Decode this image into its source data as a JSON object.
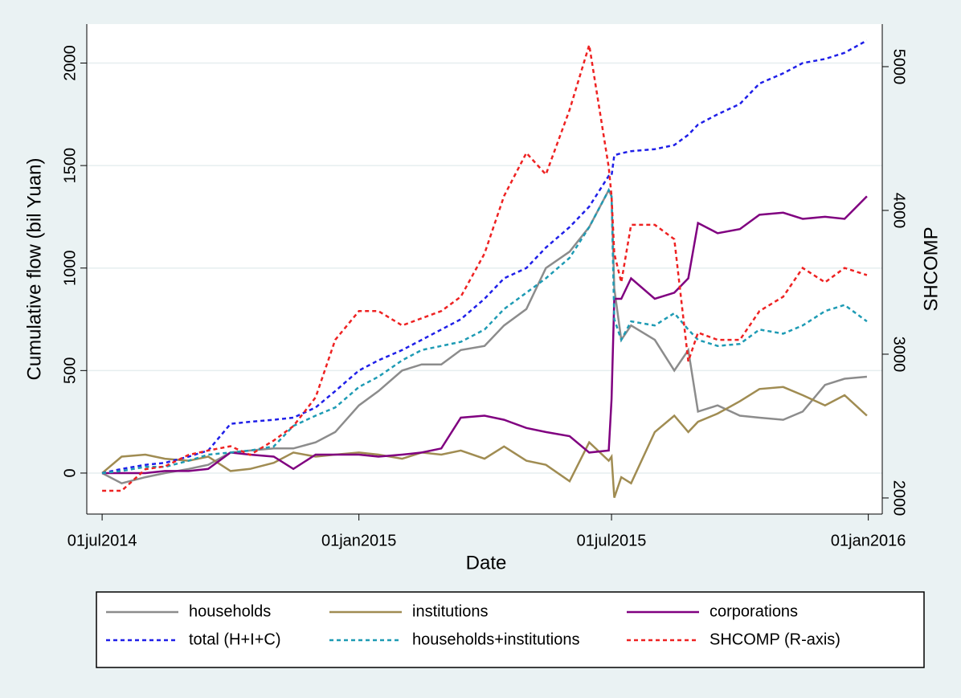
{
  "chart_data": {
    "type": "line",
    "x_label": "Date",
    "y_label": "Cumulative flow (bil Yuan)",
    "y2_label": "SHCOMP",
    "x": [
      "2014-07-01",
      "2014-07-15",
      "2014-08-01",
      "2014-08-15",
      "2014-09-01",
      "2014-09-15",
      "2014-10-01",
      "2014-10-15",
      "2014-11-01",
      "2014-11-15",
      "2014-12-01",
      "2014-12-15",
      "2015-01-01",
      "2015-01-15",
      "2015-02-01",
      "2015-02-15",
      "2015-03-01",
      "2015-03-15",
      "2015-04-01",
      "2015-04-15",
      "2015-05-01",
      "2015-05-15",
      "2015-06-01",
      "2015-06-15",
      "2015-06-29",
      "2015-07-01",
      "2015-07-03",
      "2015-07-08",
      "2015-07-15",
      "2015-08-01",
      "2015-08-15",
      "2015-08-25",
      "2015-09-01",
      "2015-09-15",
      "2015-10-01",
      "2015-10-15",
      "2015-11-01",
      "2015-11-15",
      "2015-12-01",
      "2015-12-15",
      "2015-12-31"
    ],
    "xlim": [
      "2014-06-20",
      "2016-01-11"
    ],
    "xticks": [
      {
        "value": "2014-07-01",
        "label": "01jul2014"
      },
      {
        "value": "2015-01-01",
        "label": "01jan2015"
      },
      {
        "value": "2015-07-01",
        "label": "01jul2015"
      },
      {
        "value": "2016-01-01",
        "label": "01jan2016"
      }
    ],
    "ylim": [
      -200,
      2190
    ],
    "yticks": [
      0,
      500,
      1000,
      1500,
      2000
    ],
    "y2lim": [
      1888,
      5296
    ],
    "y2ticks": [
      2000,
      3000,
      4000,
      5000
    ],
    "grid": true,
    "series": [
      {
        "name": "households",
        "color": "#8c8c8c",
        "dash": false,
        "values": [
          0,
          -50,
          -20,
          0,
          20,
          40,
          100,
          110,
          120,
          120,
          150,
          200,
          330,
          400,
          500,
          530,
          530,
          600,
          620,
          720,
          800,
          1000,
          1080,
          1200,
          1380,
          1350,
          900,
          650,
          720,
          650,
          500,
          600,
          300,
          330,
          280,
          270,
          260,
          300,
          430,
          460,
          470
        ]
      },
      {
        "name": "institutions",
        "color": "#a08c52",
        "dash": false,
        "values": [
          0,
          80,
          90,
          70,
          60,
          80,
          10,
          20,
          50,
          100,
          80,
          90,
          100,
          90,
          70,
          100,
          90,
          110,
          70,
          130,
          60,
          40,
          -40,
          150,
          60,
          80,
          -120,
          -20,
          -50,
          200,
          280,
          200,
          250,
          290,
          350,
          410,
          420,
          380,
          330,
          380,
          280
        ]
      },
      {
        "name": "corporations",
        "color": "#800080",
        "dash": false,
        "values": [
          0,
          0,
          0,
          10,
          10,
          20,
          100,
          90,
          80,
          20,
          90,
          90,
          90,
          80,
          90,
          100,
          120,
          270,
          280,
          260,
          220,
          200,
          180,
          100,
          110,
          360,
          850,
          850,
          950,
          850,
          880,
          950,
          1220,
          1170,
          1190,
          1260,
          1270,
          1240,
          1250,
          1240,
          1350
        ]
      },
      {
        "name": "total (H+I+C)",
        "color": "#1f1fe8",
        "dash": true,
        "values": [
          0,
          20,
          40,
          50,
          80,
          110,
          240,
          250,
          260,
          270,
          320,
          400,
          500,
          550,
          600,
          650,
          700,
          750,
          850,
          950,
          1000,
          1100,
          1200,
          1300,
          1450,
          1450,
          1550,
          1560,
          1570,
          1580,
          1600,
          1650,
          1700,
          1750,
          1800,
          1900,
          1950,
          2000,
          2020,
          2050,
          2110
        ]
      },
      {
        "name": "households+institutions",
        "color": "#1e9bb4",
        "dash": true,
        "values": [
          0,
          10,
          30,
          30,
          60,
          90,
          100,
          110,
          130,
          230,
          280,
          320,
          420,
          470,
          550,
          600,
          620,
          640,
          700,
          800,
          880,
          950,
          1050,
          1200,
          1380,
          1350,
          750,
          650,
          740,
          720,
          780,
          700,
          650,
          620,
          630,
          700,
          680,
          720,
          790,
          820,
          740
        ]
      },
      {
        "name": "SHCOMP (R-axis)",
        "color": "#ee2222",
        "dash": true,
        "axis": "y2",
        "values": [
          2050,
          2050,
          2200,
          2220,
          2300,
          2330,
          2360,
          2300,
          2400,
          2500,
          2700,
          3100,
          3300,
          3300,
          3200,
          3250,
          3300,
          3400,
          3700,
          4100,
          4400,
          4250,
          4700,
          5150,
          4300,
          4100,
          3700,
          3500,
          3900,
          3900,
          3800,
          2950,
          3150,
          3100,
          3100,
          3300,
          3400,
          3600,
          3500,
          3600,
          3550
        ]
      }
    ]
  }
}
